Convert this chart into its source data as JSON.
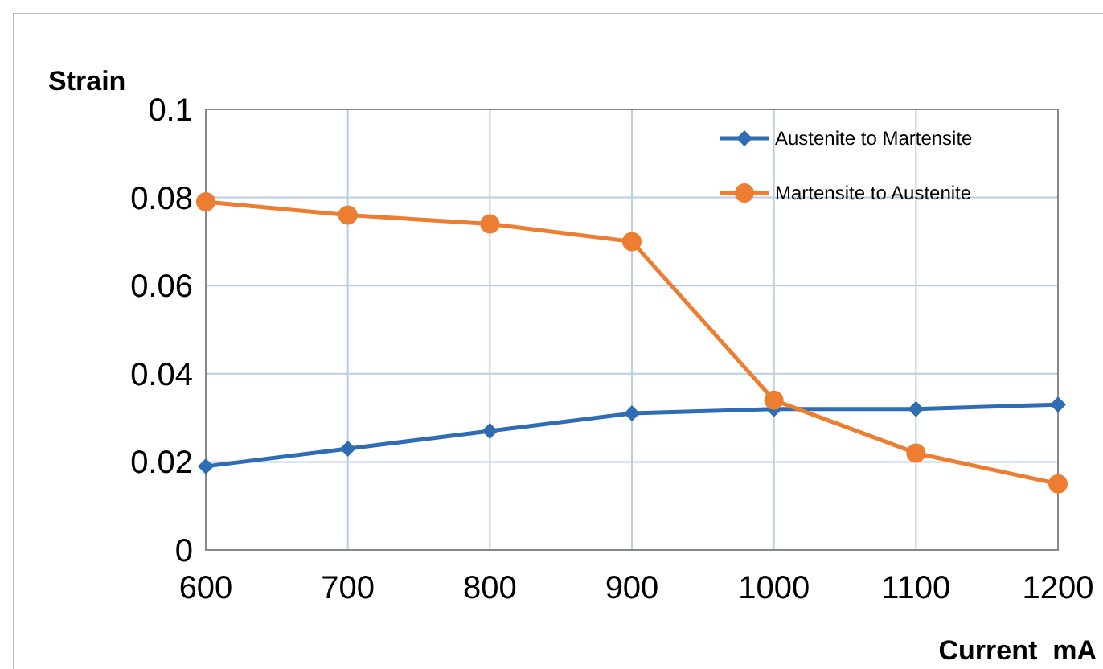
{
  "chart_data": {
    "type": "line",
    "ylabel": "Strain",
    "xlabel": "Current  mA",
    "x": [
      600,
      700,
      800,
      900,
      1000,
      1100,
      1200
    ],
    "xlim": [
      600,
      1200
    ],
    "xticks": [
      600,
      700,
      800,
      900,
      1000,
      1100,
      1200
    ],
    "ylim": [
      0,
      0.1
    ],
    "yticks": [
      0,
      0.02,
      0.04,
      0.06,
      0.08,
      0.1
    ],
    "grid": true,
    "legend": "top right",
    "line_style": "solid",
    "series": [
      {
        "name": "Austenite to Martensite",
        "color": "#2e6db4",
        "marker": "diamond",
        "values": [
          0.019,
          0.023,
          0.027,
          0.031,
          0.032,
          0.032,
          0.033
        ]
      },
      {
        "name": "Martensite to Austenite",
        "color": "#ed7d31",
        "marker": "circle",
        "values": [
          0.079,
          0.076,
          0.074,
          0.07,
          0.034,
          0.022,
          0.015
        ]
      }
    ]
  }
}
